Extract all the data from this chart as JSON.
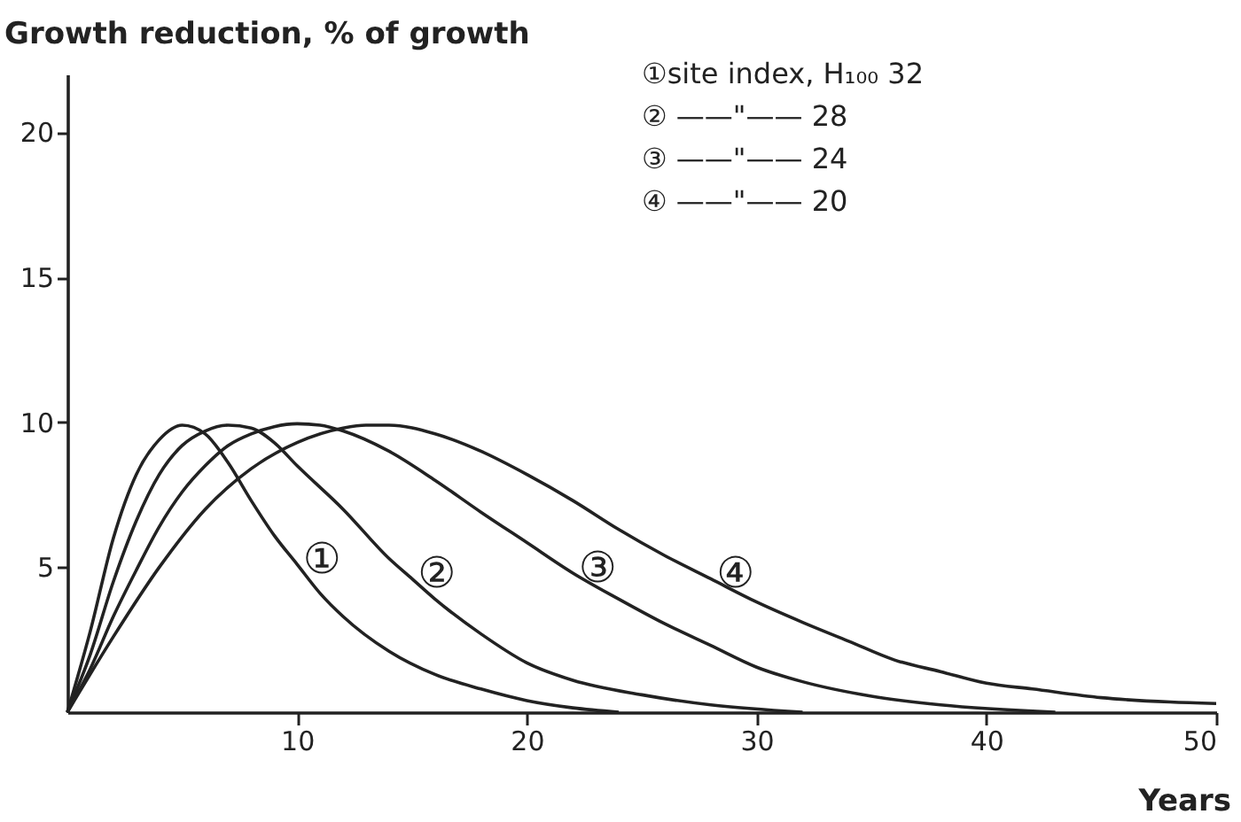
{
  "chart_data": {
    "type": "line",
    "ylabel": "Growth reduction, % of growth",
    "xlabel": "Years",
    "xlim": [
      0,
      50
    ],
    "ylim": [
      0,
      22
    ],
    "xticks": [
      10,
      20,
      30,
      40,
      50
    ],
    "yticks": [
      5,
      10,
      15,
      20
    ],
    "grid": false,
    "marker": "none",
    "line_style": "solid",
    "series": [
      {
        "color": "#222222",
        "x": [
          0,
          1,
          2,
          3,
          4,
          5,
          6,
          7,
          8,
          9,
          10,
          11,
          12,
          14,
          16,
          18,
          20,
          22,
          24
        ],
        "values": [
          0,
          2.8,
          6,
          8.2,
          9.4,
          9.9,
          9.6,
          8.6,
          7.3,
          6.1,
          5.1,
          4.1,
          3.3,
          2.1,
          1.3,
          0.8,
          0.4,
          0.15,
          0
        ]
      },
      {
        "color": "#222222",
        "x": [
          0,
          1,
          2,
          3,
          4,
          5,
          6,
          7,
          8,
          9,
          10,
          12,
          14,
          15,
          16,
          18,
          20,
          22,
          25,
          28,
          32
        ],
        "values": [
          0,
          2,
          4.5,
          6.6,
          8.2,
          9.2,
          9.7,
          9.9,
          9.8,
          9.3,
          8.5,
          7,
          5.3,
          4.6,
          3.9,
          2.7,
          1.7,
          1.1,
          0.6,
          0.25,
          0
        ]
      },
      {
        "color": "#222222",
        "x": [
          0,
          1,
          2,
          3,
          4,
          5,
          6,
          7,
          8,
          9,
          10,
          11,
          12,
          14,
          16,
          18,
          20,
          22,
          24,
          26,
          28,
          30,
          32,
          35,
          38,
          43
        ],
        "values": [
          0,
          1.5,
          3.3,
          4.9,
          6.4,
          7.6,
          8.5,
          9.2,
          9.6,
          9.85,
          9.95,
          9.9,
          9.7,
          9,
          8,
          6.9,
          5.85,
          4.8,
          3.9,
          3.05,
          2.3,
          1.55,
          1.05,
          0.55,
          0.25,
          0
        ]
      },
      {
        "color": "#222222",
        "x": [
          0,
          2,
          4,
          6,
          8,
          10,
          12,
          13,
          14,
          16,
          18,
          20,
          22,
          24,
          26,
          28,
          30,
          32,
          34,
          36,
          38,
          40,
          42,
          45,
          48,
          50
        ],
        "values": [
          0,
          2.6,
          5,
          7,
          8.4,
          9.3,
          9.8,
          9.9,
          9.9,
          9.6,
          9,
          8.2,
          7.3,
          6.3,
          5.4,
          4.6,
          3.8,
          3.1,
          2.45,
          1.8,
          1.4,
          1,
          0.8,
          0.5,
          0.35,
          0.3
        ]
      }
    ],
    "annotations": [
      {
        "text": "①",
        "x": 10,
        "y": 5.1
      },
      {
        "text": "②",
        "x": 15,
        "y": 4.6
      },
      {
        "text": "③",
        "x": 22,
        "y": 4.8
      },
      {
        "text": "④",
        "x": 28,
        "y": 4.6
      },
      "①site index, H₁₀₀  32",
      "②    ——\"——       28",
      "③    ——\"——       24",
      "④    ——\"——       20"
    ]
  }
}
